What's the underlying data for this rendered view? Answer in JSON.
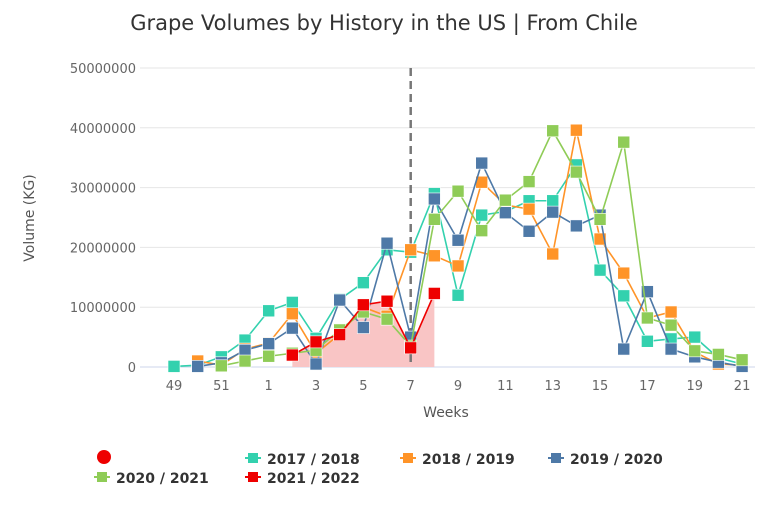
{
  "chart_data": {
    "type": "line",
    "title": "Grape Volumes by History in the US | From Chile",
    "xlabel": "Weeks",
    "ylabel": "Volume (KG)",
    "ylim": [
      0,
      50000000
    ],
    "yticks": [
      "0",
      "10000000",
      "20000000",
      "30000000",
      "40000000",
      "50000000"
    ],
    "categories": [
      "49",
      "50",
      "51",
      "52",
      "1",
      "2",
      "3",
      "4",
      "5",
      "6",
      "7",
      "8",
      "9",
      "10",
      "11",
      "12",
      "13",
      "14",
      "15",
      "16",
      "17",
      "18",
      "19",
      "20",
      "21"
    ],
    "x_tick_labels_shown": [
      "49",
      "51",
      "1",
      "3",
      "5",
      "7",
      "9",
      "11",
      "13",
      "15",
      "17",
      "19",
      "21"
    ],
    "reference_line": {
      "week": "7",
      "style": "dashed",
      "color": "#777777"
    },
    "grid": "horizontal",
    "legend_placement": "bottom",
    "legend_marker_only": {
      "color": "#ee0000"
    },
    "series": [
      {
        "name": "2017 / 2018",
        "color": "#33d1ae",
        "values": [
          100000,
          300000,
          1700000,
          4500000,
          9400000,
          10800000,
          4800000,
          11300000,
          14100000,
          19600000,
          19200000,
          29000000,
          12000000,
          25400000,
          26000000,
          27800000,
          27800000,
          33800000,
          16200000,
          11900000,
          4300000,
          4700000,
          5000000,
          1500000,
          500000
        ]
      },
      {
        "name": "2018 / 2019",
        "color": "#ff9428",
        "values": [
          null,
          1000000,
          300000,
          3000000,
          4000000,
          8900000,
          2300000,
          5500000,
          10000000,
          8500000,
          19600000,
          18600000,
          16900000,
          30900000,
          27100000,
          26400000,
          18900000,
          39600000,
          21400000,
          15700000,
          8200000,
          9200000,
          2500000,
          500000,
          300000
        ]
      },
      {
        "name": "2019 / 2020",
        "color": "#4e79a7",
        "values": [
          null,
          100000,
          700000,
          2800000,
          3900000,
          6500000,
          500000,
          11200000,
          6600000,
          20700000,
          5000000,
          28100000,
          21200000,
          34100000,
          25800000,
          22700000,
          25900000,
          23600000,
          25400000,
          3000000,
          12600000,
          3000000,
          1700000,
          800000,
          100000
        ]
      },
      {
        "name": "2020 / 2021",
        "color": "#8fcc57",
        "values": [
          null,
          null,
          200000,
          1000000,
          1800000,
          2300000,
          2800000,
          6200000,
          9200000,
          8000000,
          3500000,
          24700000,
          29400000,
          22800000,
          27900000,
          31000000,
          39500000,
          32600000,
          24700000,
          37600000,
          8200000,
          7000000,
          2700000,
          2100000,
          1200000
        ]
      },
      {
        "name": "2021 / 2022",
        "color": "#ee0000",
        "area": true,
        "area_color": "#f9c5c5",
        "values": [
          null,
          null,
          null,
          null,
          null,
          2000000,
          4200000,
          5400000,
          10400000,
          11000000,
          3200000,
          12300000,
          null,
          null,
          null,
          null,
          null,
          null,
          null,
          null,
          null,
          null,
          null,
          null,
          null
        ]
      }
    ]
  }
}
